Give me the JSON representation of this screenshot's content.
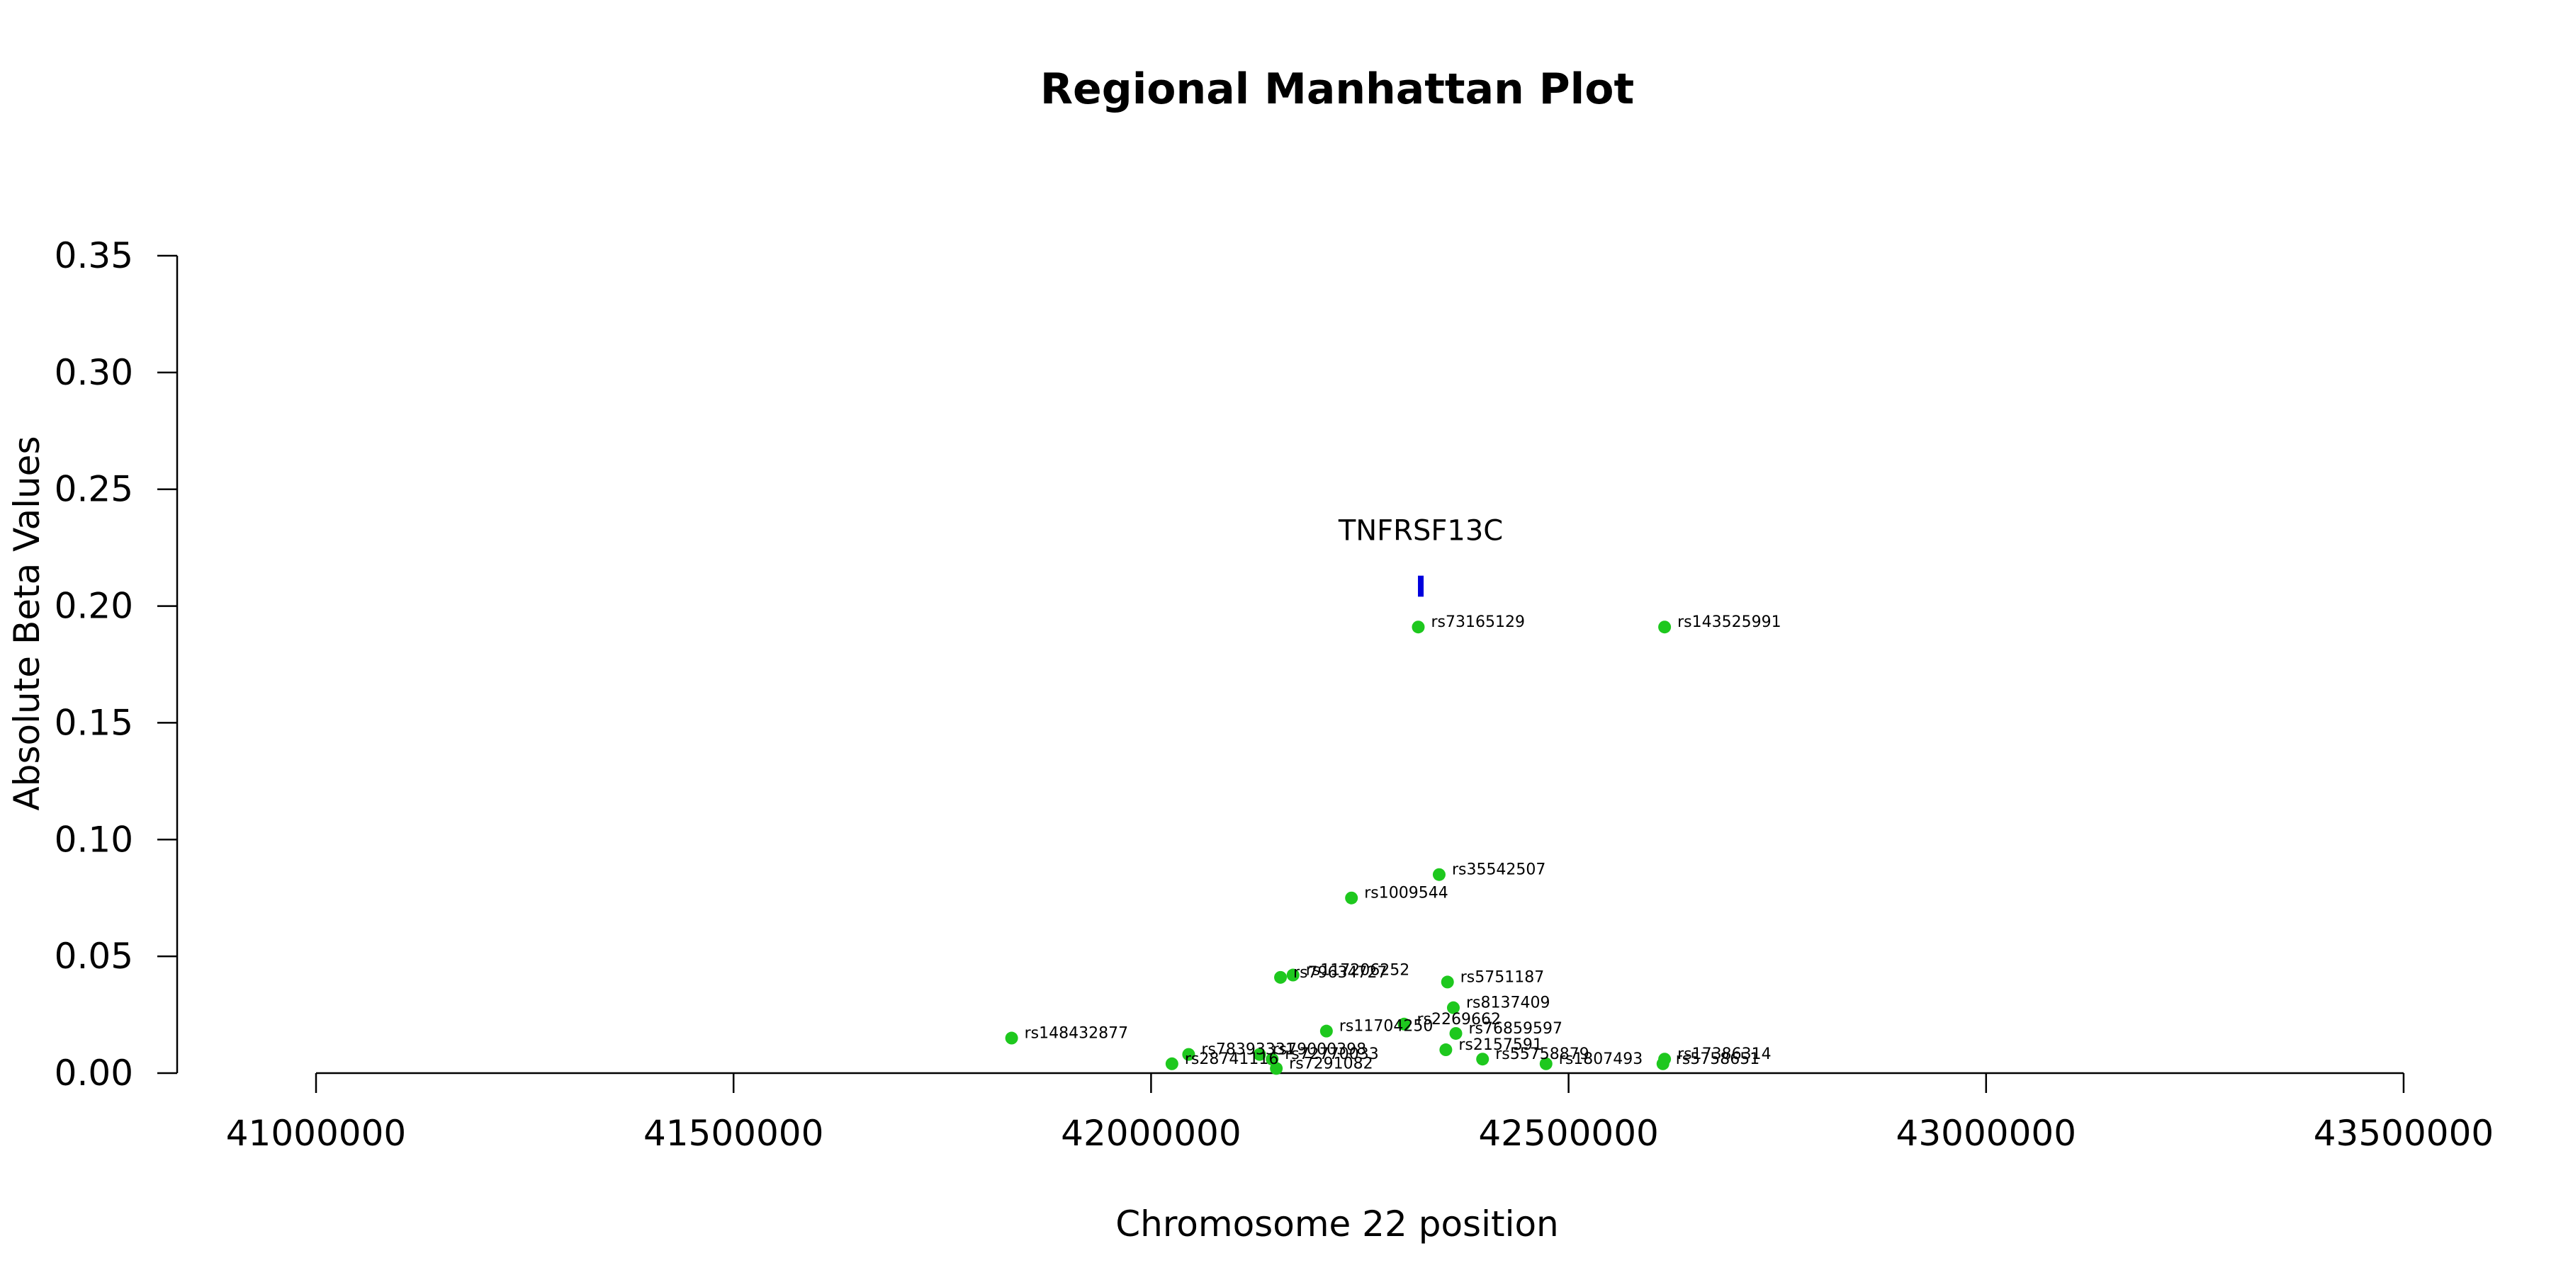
{
  "chart_data": {
    "type": "scatter",
    "title": "Regional Manhattan Plot",
    "xlabel": "Chromosome 22 position",
    "ylabel": "Absolute Beta Values",
    "xlim": [
      41000000,
      43500000
    ],
    "ylim": [
      0,
      0.35
    ],
    "x_ticks": [
      41000000,
      41500000,
      42000000,
      42500000,
      43000000,
      43500000
    ],
    "y_ticks": [
      0.0,
      0.05,
      0.1,
      0.15,
      0.2,
      0.25,
      0.3,
      0.35
    ],
    "y_tick_labels": [
      "0.00",
      "0.05",
      "0.10",
      "0.15",
      "0.20",
      "0.25",
      "0.30",
      "0.35"
    ],
    "grid": false,
    "point_color": "#1ec81e",
    "points": [
      {
        "label": "rs73165129",
        "x": 42320000,
        "y": 0.191
      },
      {
        "label": "rs143525991",
        "x": 42615000,
        "y": 0.191
      },
      {
        "label": "rs35542507",
        "x": 42345000,
        "y": 0.085
      },
      {
        "label": "rs1009544",
        "x": 42240000,
        "y": 0.075
      },
      {
        "label": "rs117206252",
        "x": 42170000,
        "y": 0.042
      },
      {
        "label": "rs79634727",
        "x": 42155000,
        "y": 0.041
      },
      {
        "label": "rs5751187",
        "x": 42355000,
        "y": 0.039
      },
      {
        "label": "rs8137409",
        "x": 42362000,
        "y": 0.028
      },
      {
        "label": "rs2269662",
        "x": 42303000,
        "y": 0.021
      },
      {
        "label": "rs11704250",
        "x": 42210000,
        "y": 0.018
      },
      {
        "label": "rs76859597",
        "x": 42365000,
        "y": 0.017
      },
      {
        "label": "rs148432877",
        "x": 41833000,
        "y": 0.015
      },
      {
        "label": "rs2157591",
        "x": 42353000,
        "y": 0.01
      },
      {
        "label": "rs78393331",
        "x": 42045000,
        "y": 0.008
      },
      {
        "label": "rs79000398",
        "x": 42130000,
        "y": 0.008
      },
      {
        "label": "rs55758879",
        "x": 42397000,
        "y": 0.006
      },
      {
        "label": "rs17386314",
        "x": 42615000,
        "y": 0.006
      },
      {
        "label": "rs72770033",
        "x": 42145000,
        "y": 0.006
      },
      {
        "label": "rs1807493",
        "x": 42473000,
        "y": 0.004
      },
      {
        "label": "rs5758651",
        "x": 42613000,
        "y": 0.004
      },
      {
        "label": "rs28741116",
        "x": 42025000,
        "y": 0.004
      },
      {
        "label": "rs7291082",
        "x": 42150000,
        "y": 0.002
      }
    ],
    "gene": {
      "name": "TNFRSF13C",
      "x": 42323000,
      "y_low": 0.204,
      "y_high": 0.213,
      "color": "#0000dd"
    }
  }
}
